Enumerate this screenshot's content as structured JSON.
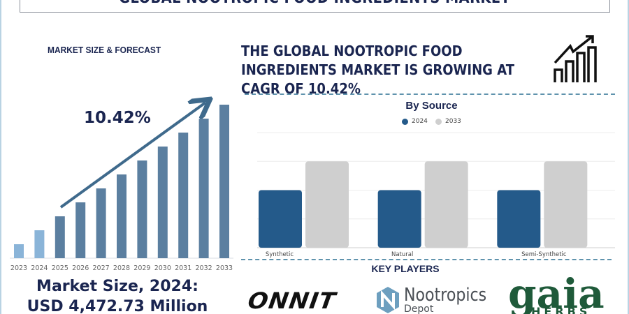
{
  "header": {
    "title": "GLOBAL NOOTROPIC FOOD INGREDIENTS MARKET"
  },
  "left_panel": {
    "heading": "MARKET SIZE & FORECAST",
    "cagr_label": "10.42%",
    "market_size_line1": "Market Size, 2024:",
    "market_size_line2": "USD 4,472.73 Million"
  },
  "right_panel": {
    "headline": "THE GLOBAL NOOTROPIC FOOD INGREDIENTS MARKET IS GROWING AT CAGR OF 10.42%",
    "growth_icon": "bar-chart-rising-arrow-icon",
    "key_players_heading": "KEY PLAYERS",
    "key_players": [
      "ONNIT",
      "Nootropics Depot",
      "gaia HERBS"
    ]
  },
  "colors": {
    "navy": "#1a2550",
    "historic": "#8ab4d8",
    "forecast": "#5b7fa0",
    "series_2024": "#245a8a",
    "series_2033": "#cfcfcf"
  },
  "chart_data": [
    {
      "type": "bar",
      "title": "",
      "categories": [
        "2023",
        "2024",
        "2025",
        "2026",
        "2027",
        "2028",
        "2029",
        "2030",
        "2031",
        "2032",
        "2033"
      ],
      "values": [
        1,
        2,
        3,
        4,
        5,
        6,
        7,
        8,
        9,
        10,
        11
      ],
      "value_note_visible": false,
      "annotation": "10.42%",
      "grid": false
    },
    {
      "type": "bar",
      "title": "By Source",
      "categories": [
        "Synthetic",
        "Natural",
        "Semi-Synthetic"
      ],
      "series": [
        {
          "name": "2024",
          "values": [
            2,
            2,
            2
          ]
        },
        {
          "name": "2033",
          "values": [
            3,
            3,
            3
          ]
        }
      ],
      "ylim": [
        0,
        4
      ],
      "grid": true,
      "legend": "top-center"
    }
  ]
}
